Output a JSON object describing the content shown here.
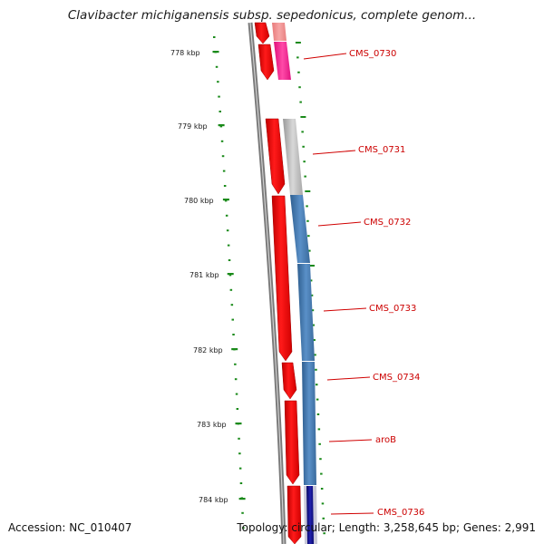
{
  "title": "Clavibacter michiganensis subsp. sepedonicus, complete genom...",
  "footer": {
    "accession": "Accession: NC_010407",
    "summary": "Topology: circular; Length: 3,258,645 bp; Genes: 2,991"
  },
  "ruler": {
    "labels": [
      "778 kbp",
      "779 kbp",
      "780 kbp",
      "781 kbp",
      "782 kbp",
      "783 kbp",
      "784 kbp"
    ]
  },
  "genes": [
    {
      "label": "CMS_0730"
    },
    {
      "label": "CMS_0731"
    },
    {
      "label": "CMS_0732"
    },
    {
      "label": "CMS_0733"
    },
    {
      "label": "CMS_0734"
    },
    {
      "label": "aroB"
    },
    {
      "label": "CMS_0736"
    }
  ],
  "colors": {
    "forward_strand": "#ff0000",
    "feature_pink": "#ff2a8a",
    "feature_grey": "#bbbbbb",
    "feature_blue": "#4a7fb4",
    "feature_navy": "#101090",
    "ruler_ticks": "#1a8a1a",
    "label_red": "#cc0000",
    "backbone": "#808080"
  }
}
